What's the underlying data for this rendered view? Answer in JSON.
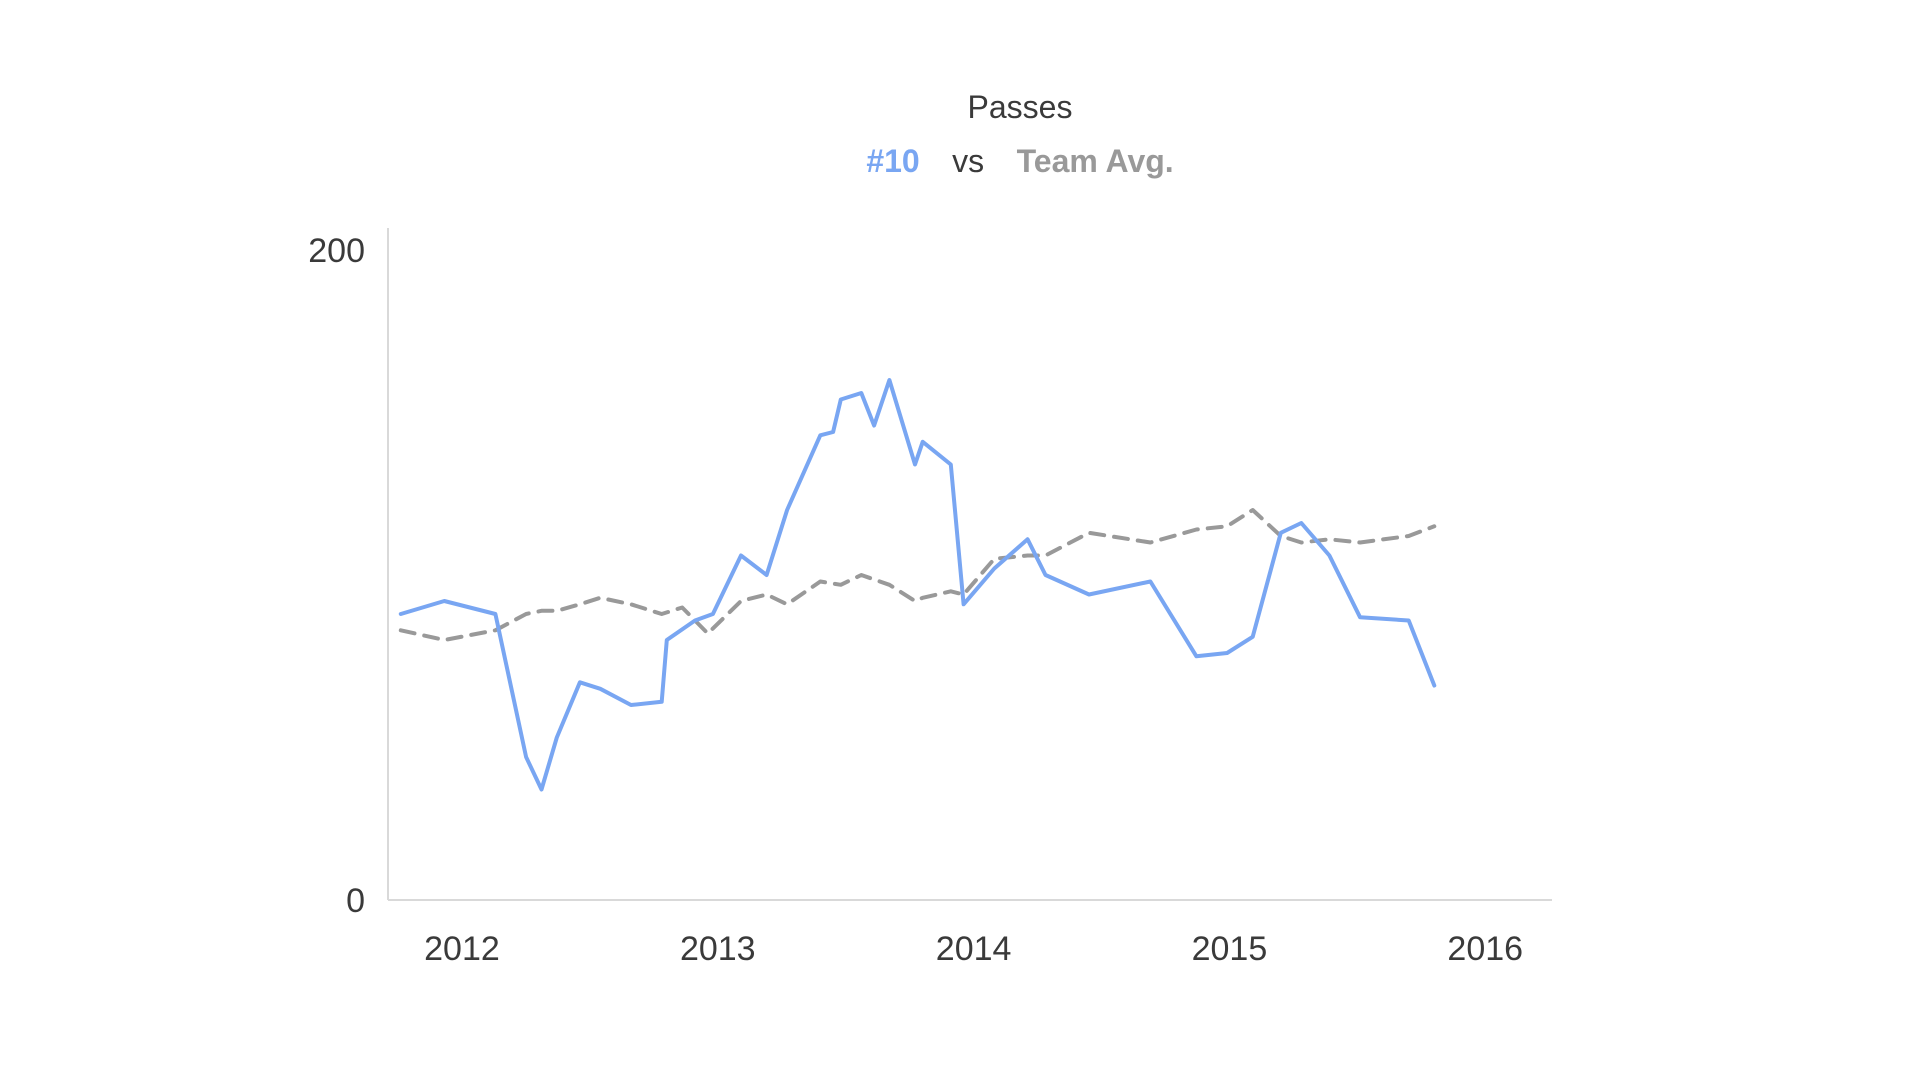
{
  "chart_data": {
    "type": "line",
    "title": "Passes",
    "subtitle": {
      "series_a": "#10",
      "vs": "vs",
      "series_b": "Team Avg."
    },
    "xlabel": "",
    "ylabel": "",
    "xlim": [
      2011.75,
      2016.3
    ],
    "ylim": [
      0,
      200
    ],
    "x_ticks": [
      {
        "label": "2012",
        "value": 2012
      },
      {
        "label": "2013",
        "value": 2013
      },
      {
        "label": "2014",
        "value": 2014
      },
      {
        "label": "2015",
        "value": 2015
      },
      {
        "label": "2016",
        "value": 2016
      }
    ],
    "y_ticks": [
      {
        "label": "200",
        "value": 200
      },
      {
        "label": "0",
        "value": 0
      }
    ],
    "grid": false,
    "legend": "none",
    "colors": {
      "player": "#79a6f2",
      "team": "#999999",
      "text": "#3a3a3a",
      "axis": "#d9d9d9"
    },
    "series": [
      {
        "name": "#10",
        "style": "solid",
        "x": [
          2011.8,
          2011.97,
          2012.17,
          2012.29,
          2012.35,
          2012.41,
          2012.5,
          2012.58,
          2012.7,
          2012.82,
          2012.84,
          2012.95,
          2013.02,
          2013.13,
          2013.23,
          2013.31,
          2013.44,
          2013.49,
          2013.52,
          2013.6,
          2013.65,
          2013.71,
          2013.81,
          2013.84,
          2013.95,
          2014.0,
          2014.12,
          2014.25,
          2014.32,
          2014.49,
          2014.73,
          2014.91,
          2015.03,
          2015.13,
          2015.24,
          2015.32,
          2015.43,
          2015.55,
          2015.74,
          2015.84
        ],
        "y": [
          88,
          92,
          88,
          44,
          34,
          50,
          67,
          65,
          60,
          61,
          80,
          86,
          88,
          106,
          100,
          120,
          143,
          144,
          154,
          156,
          146,
          160,
          134,
          141,
          134,
          91,
          102,
          111,
          100,
          94,
          98,
          75,
          76,
          81,
          113,
          116,
          106,
          87,
          86,
          66
        ]
      },
      {
        "name": "Team Avg.",
        "style": "dashed",
        "x": [
          2011.8,
          2011.97,
          2012.17,
          2012.29,
          2012.35,
          2012.41,
          2012.5,
          2012.58,
          2012.7,
          2012.82,
          2012.9,
          2013.0,
          2013.13,
          2013.23,
          2013.31,
          2013.44,
          2013.52,
          2013.6,
          2013.71,
          2013.81,
          2013.84,
          2013.95,
          2014.0,
          2014.12,
          2014.25,
          2014.32,
          2014.49,
          2014.73,
          2014.91,
          2015.03,
          2015.13,
          2015.24,
          2015.32,
          2015.43,
          2015.55,
          2015.74,
          2015.84
        ],
        "y": [
          83,
          80,
          83,
          88,
          89,
          89,
          91,
          93,
          91,
          88,
          90,
          82,
          92,
          94,
          91,
          98,
          97,
          100,
          97,
          92,
          93,
          95,
          94,
          105,
          106,
          106,
          113,
          110,
          114,
          115,
          120,
          112,
          110,
          111,
          110,
          112,
          115
        ]
      }
    ]
  }
}
